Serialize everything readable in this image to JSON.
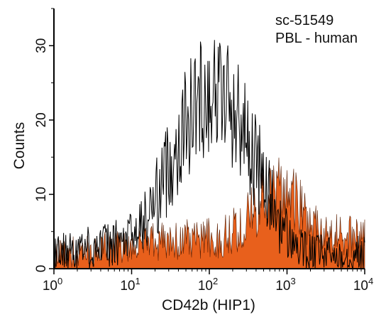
{
  "chart_data": {
    "type": "area",
    "xlabel": "CD42b (HIP1)",
    "ylabel": "Counts",
    "xscale": "log",
    "xlim": [
      1,
      10000
    ],
    "ylim": [
      0,
      35
    ],
    "x_ticks": [
      {
        "value": 1,
        "base": "10",
        "exp": "0"
      },
      {
        "value": 10,
        "base": "10",
        "exp": "1"
      },
      {
        "value": 100,
        "base": "10",
        "exp": "2"
      },
      {
        "value": 1000,
        "base": "10",
        "exp": "3"
      },
      {
        "value": 10000,
        "base": "10",
        "exp": "4"
      }
    ],
    "y_ticks": [
      "0",
      "10",
      "20",
      "30"
    ],
    "y_tick_values": [
      0,
      10,
      20,
      30
    ],
    "annotations": [
      "sc-51549",
      "PBL - human"
    ],
    "grid": false,
    "colors": {
      "filled": "#e8601c",
      "outline": "#000000",
      "axis": "#000000"
    },
    "series": [
      {
        "style": "outline",
        "x": [
          1.0,
          1.2,
          1.4,
          1.7,
          2.0,
          2.4,
          2.8,
          3.3,
          4.0,
          4.7,
          5.6,
          6.6,
          7.9,
          9.3,
          11.1,
          13.1,
          15.6,
          18.5,
          21.9,
          26.0,
          30.8,
          36.6,
          43.4,
          51.4,
          61.0,
          72.4,
          85.8,
          101.8,
          120.7,
          143.2,
          169.8,
          201.4,
          238.9,
          283.4,
          336.1,
          398.6,
          472.8,
          560.8,
          665.1,
          788.9,
          935.7,
          1109.8,
          1316.3,
          1561.3,
          1851.8,
          2196.4,
          2605.1,
          3089.9,
          3664.9,
          4346.9,
          5155.8,
          6115.3,
          7253.4,
          8603.1,
          10000.0
        ],
        "y": [
          2.0,
          2.2,
          2.4,
          2.6,
          2.7,
          2.9,
          2.9,
          3.1,
          3.1,
          3.2,
          3.3,
          3.4,
          3.7,
          4.1,
          4.7,
          5.6,
          6.8,
          8.4,
          10.2,
          12.1,
          14.1,
          16.1,
          18.0,
          19.8,
          21.3,
          22.6,
          23.5,
          24.0,
          24.0,
          23.6,
          22.8,
          21.6,
          20.1,
          18.4,
          16.5,
          14.4,
          12.3,
          10.2,
          8.2,
          6.5,
          5.0,
          3.9,
          3.1,
          2.6,
          2.2,
          2.1,
          2.1,
          2.0,
          2.0,
          2.0,
          2.0,
          2.0,
          2.0,
          2.1,
          2.1
        ]
      },
      {
        "style": "filled",
        "x": [
          1.0,
          1.2,
          1.4,
          1.7,
          2.0,
          2.4,
          2.8,
          3.3,
          4.0,
          4.7,
          5.6,
          6.6,
          7.9,
          9.3,
          11.1,
          13.1,
          15.6,
          18.5,
          21.9,
          26.0,
          30.8,
          36.6,
          43.4,
          51.4,
          61.0,
          72.4,
          85.8,
          101.8,
          120.7,
          143.2,
          169.8,
          201.4,
          238.9,
          283.4,
          336.1,
          398.6,
          472.8,
          560.8,
          665.1,
          788.9,
          935.7,
          1109.8,
          1316.3,
          1561.3,
          1851.8,
          2196.4,
          2605.1,
          3089.9,
          3664.9,
          4346.9,
          5155.8,
          6115.3,
          7253.4,
          8603.1,
          10000.0
        ],
        "y": [
          2.0,
          2.1,
          2.1,
          2.2,
          2.2,
          2.3,
          2.4,
          2.5,
          2.6,
          2.7,
          2.8,
          2.9,
          3.0,
          3.1,
          3.3,
          3.4,
          3.5,
          3.7,
          3.8,
          3.9,
          3.9,
          4.0,
          4.1,
          4.1,
          4.1,
          4.1,
          4.0,
          4.0,
          4.1,
          4.3,
          4.6,
          5.0,
          5.5,
          6.3,
          7.2,
          8.1,
          9.0,
          9.7,
          10.2,
          10.4,
          10.2,
          9.6,
          8.7,
          7.7,
          6.7,
          5.8,
          5.2,
          4.8,
          4.5,
          4.4,
          4.4,
          4.4,
          4.5,
          4.5,
          4.5
        ]
      }
    ]
  }
}
